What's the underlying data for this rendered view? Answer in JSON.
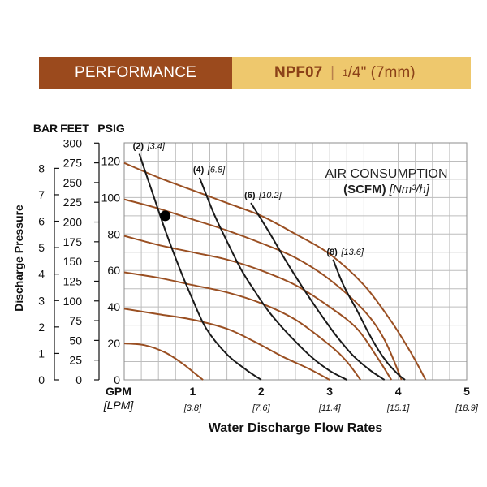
{
  "banner": {
    "section_label": "PERFORMANCE",
    "model": "NPF07",
    "size_num": "1",
    "size_den": "4\"",
    "size_metric": "(7mm)"
  },
  "colors": {
    "banner_left": "#9b4a1d",
    "banner_right": "#eec86d",
    "pressure_curve": "#9a4f22",
    "air_curve": "#1a1a1a",
    "grid": "#bdbdbd"
  },
  "chart_data": {
    "type": "line",
    "title": "AIR CONSUMPTION",
    "subtitle_bold": "(SCFM)",
    "subtitle_italic": "[Nm³/h]",
    "xlabel": "Water Discharge Flow Rates",
    "ylabel": "Discharge Pressure",
    "x_unit": "GPM",
    "x_unit_alt": "[LPM]",
    "y_units": [
      "BAR",
      "FEET",
      "PSIG"
    ],
    "xlim": [
      0,
      5
    ],
    "ylim": [
      0,
      130
    ],
    "grid": true,
    "x_ticks": [
      {
        "value": 0,
        "label": "0",
        "alt": ""
      },
      {
        "value": 1,
        "label": "1",
        "alt": "[3.8]"
      },
      {
        "value": 2,
        "label": "2",
        "alt": "[7.6]"
      },
      {
        "value": 3,
        "label": "3",
        "alt": "[11.4]"
      },
      {
        "value": 4,
        "label": "4",
        "alt": "[15.1]"
      },
      {
        "value": 5,
        "label": "5",
        "alt": "[18.9]"
      }
    ],
    "psig_ticks": [
      {
        "value": 0,
        "label": "0"
      },
      {
        "value": 20,
        "label": "20"
      },
      {
        "value": 40,
        "label": "40"
      },
      {
        "value": 60,
        "label": "60"
      },
      {
        "value": 80,
        "label": "80"
      },
      {
        "value": 100,
        "label": "100"
      },
      {
        "value": 120,
        "label": "120"
      }
    ],
    "feet_ticks": [
      {
        "value": 0,
        "label": "0"
      },
      {
        "value": 25,
        "label": "25"
      },
      {
        "value": 50,
        "label": "50"
      },
      {
        "value": 75,
        "label": "75"
      },
      {
        "value": 100,
        "label": "100"
      },
      {
        "value": 125,
        "label": "125"
      },
      {
        "value": 150,
        "label": "150"
      },
      {
        "value": 175,
        "label": "175"
      },
      {
        "value": 200,
        "label": "200"
      },
      {
        "value": 225,
        "label": "225"
      },
      {
        "value": 250,
        "label": "250"
      },
      {
        "value": 275,
        "label": "275"
      },
      {
        "value": 300,
        "label": "300"
      }
    ],
    "bar_ticks": [
      {
        "value": 0,
        "label": "0"
      },
      {
        "value": 1,
        "label": "1"
      },
      {
        "value": 2,
        "label": "2"
      },
      {
        "value": 3,
        "label": "3"
      },
      {
        "value": 4,
        "label": "4"
      },
      {
        "value": 5,
        "label": "5"
      },
      {
        "value": 6,
        "label": "6"
      },
      {
        "value": 7,
        "label": "7"
      },
      {
        "value": 8,
        "label": "8"
      }
    ],
    "pressure_series": [
      {
        "inlet_psig": 20,
        "points": [
          [
            0,
            20
          ],
          [
            0.3,
            19
          ],
          [
            0.6,
            15
          ],
          [
            0.85,
            9
          ],
          [
            1.05,
            3
          ],
          [
            1.15,
            0
          ]
        ]
      },
      {
        "inlet_psig": 40,
        "points": [
          [
            0,
            39
          ],
          [
            0.5,
            36
          ],
          [
            1.0,
            33
          ],
          [
            1.5,
            28
          ],
          [
            1.9,
            21
          ],
          [
            2.3,
            13
          ],
          [
            2.7,
            6
          ],
          [
            3.0,
            0
          ]
        ]
      },
      {
        "inlet_psig": 60,
        "points": [
          [
            0,
            59
          ],
          [
            0.5,
            56
          ],
          [
            1.0,
            52
          ],
          [
            1.5,
            48
          ],
          [
            2.0,
            42
          ],
          [
            2.5,
            33
          ],
          [
            3.0,
            19
          ],
          [
            3.25,
            10
          ],
          [
            3.45,
            0
          ]
        ]
      },
      {
        "inlet_psig": 80,
        "points": [
          [
            0,
            79
          ],
          [
            0.5,
            74
          ],
          [
            1.0,
            70
          ],
          [
            1.5,
            66
          ],
          [
            2.0,
            60
          ],
          [
            2.5,
            52
          ],
          [
            3.0,
            40
          ],
          [
            3.4,
            28
          ],
          [
            3.7,
            12
          ],
          [
            3.9,
            0
          ]
        ]
      },
      {
        "inlet_psig": 100,
        "points": [
          [
            0,
            99
          ],
          [
            0.5,
            94
          ],
          [
            1.0,
            88
          ],
          [
            1.5,
            82
          ],
          [
            2.0,
            75
          ],
          [
            2.5,
            67
          ],
          [
            3.0,
            55
          ],
          [
            3.5,
            38
          ],
          [
            3.8,
            22
          ],
          [
            4.05,
            0
          ]
        ]
      },
      {
        "inlet_psig": 120,
        "points": [
          [
            0,
            119
          ],
          [
            0.5,
            111
          ],
          [
            1.0,
            104
          ],
          [
            1.5,
            97
          ],
          [
            2.0,
            90
          ],
          [
            2.5,
            80
          ],
          [
            3.0,
            69
          ],
          [
            3.5,
            52
          ],
          [
            3.9,
            32
          ],
          [
            4.2,
            14
          ],
          [
            4.4,
            0
          ]
        ]
      }
    ],
    "air_series": [
      {
        "label": "(2)",
        "label_alt": "[3.4]",
        "points": [
          [
            0.22,
            124
          ],
          [
            0.4,
            104
          ],
          [
            0.6,
            82
          ],
          [
            0.8,
            62
          ],
          [
            1.0,
            44
          ],
          [
            1.2,
            28
          ],
          [
            1.5,
            14
          ],
          [
            1.8,
            5
          ],
          [
            2.0,
            0
          ]
        ]
      },
      {
        "label": "(4)",
        "label_alt": "[6.8]",
        "points": [
          [
            1.1,
            111
          ],
          [
            1.3,
            92
          ],
          [
            1.5,
            76
          ],
          [
            1.7,
            61
          ],
          [
            1.9,
            49
          ],
          [
            2.1,
            38
          ],
          [
            2.3,
            29
          ],
          [
            2.5,
            21
          ],
          [
            2.75,
            12
          ],
          [
            3.0,
            5
          ],
          [
            3.25,
            0
          ]
        ]
      },
      {
        "label": "(6)",
        "label_alt": "[10.2]",
        "points": [
          [
            1.85,
            97
          ],
          [
            2.1,
            82
          ],
          [
            2.35,
            66
          ],
          [
            2.6,
            51
          ],
          [
            2.85,
            37
          ],
          [
            3.1,
            24
          ],
          [
            3.35,
            13
          ],
          [
            3.6,
            5
          ],
          [
            3.8,
            0
          ]
        ]
      },
      {
        "label": "(8)",
        "label_alt": "[13.6]",
        "points": [
          [
            3.05,
            66
          ],
          [
            3.2,
            52
          ],
          [
            3.4,
            38
          ],
          [
            3.55,
            27
          ],
          [
            3.7,
            17
          ],
          [
            3.85,
            9
          ],
          [
            4.0,
            3
          ],
          [
            4.1,
            0
          ]
        ]
      }
    ],
    "operating_point": {
      "x": 0.6,
      "y": 90
    }
  }
}
